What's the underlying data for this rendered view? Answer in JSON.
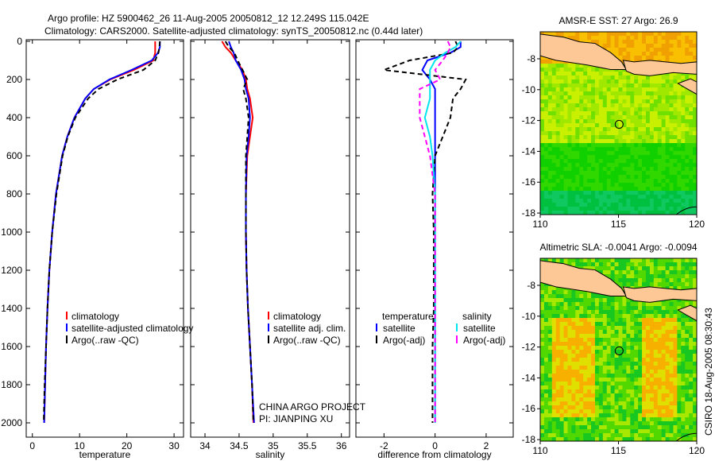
{
  "title_line1": "Argo profile: HZ 5900462_26 11-Aug-2005 20050812_12 12.249S 115.042E",
  "title_line2": "Climatology: CARS2000. Satellite-adjusted climatology: synTS_20050812.nc (0.44d later)",
  "footer_stamp": "CSIRO 18-Aug-2005 08:30:43",
  "colors": {
    "climatology": "#ff0000",
    "satellite": "#0000ff",
    "argo": "#000000",
    "cyan": "#00e5ee",
    "magenta": "#ff00ff",
    "land": "#fdc896"
  },
  "chart_data": [
    {
      "type": "line",
      "xlabel": "temperature",
      "ylabel": "",
      "xlim": [
        -1.3,
        32
      ],
      "ylim": [
        0,
        2075
      ],
      "xticks": [
        "0",
        "10",
        "20",
        "30"
      ],
      "xtick_values": [
        0,
        10,
        20,
        30
      ],
      "yticks": [
        "0",
        "200",
        "400",
        "600",
        "800",
        "1000",
        "1200",
        "1400",
        "1600",
        "1800",
        "2000"
      ],
      "depth": [
        0,
        30,
        60,
        100,
        150,
        200,
        250,
        300,
        400,
        500,
        600,
        800,
        1000,
        1200,
        1400,
        1600,
        1800,
        2000
      ],
      "legend": [
        "climatology",
        "satellite-adjusted climatology",
        "Argo(..raw -QC)"
      ],
      "series": [
        {
          "name": "climatology",
          "style": "climatology",
          "values": [
            26,
            26,
            26,
            25.6,
            21.5,
            16.5,
            13,
            11.2,
            8.9,
            7.4,
            6.3,
            5,
            4.2,
            3.6,
            3.2,
            2.9,
            2.7,
            2.5
          ]
        },
        {
          "name": "satellite-adjusted climatology",
          "style": "satellite",
          "values": [
            27,
            27,
            26.6,
            25.3,
            21,
            16.3,
            13,
            11.2,
            8.9,
            7.4,
            6.3,
            5,
            4.2,
            3.6,
            3.2,
            2.9,
            2.7,
            2.5
          ]
        },
        {
          "name": "Argo(..raw -QC)",
          "style": "argo",
          "values": [
            27,
            26.9,
            26.7,
            26,
            23.5,
            18,
            14,
            11.8,
            9.1,
            7.5,
            6.4,
            5.1,
            4.2,
            3.6,
            3.2,
            2.9,
            2.6,
            2.4
          ]
        }
      ]
    },
    {
      "type": "line",
      "xlabel": "salinity",
      "xlim": [
        33.79,
        36.12
      ],
      "ylim": [
        0,
        2075
      ],
      "xticks": [
        "34",
        "34.5",
        "35",
        "35.5",
        "36"
      ],
      "xtick_values": [
        34,
        34.5,
        35,
        35.5,
        36
      ],
      "depth": [
        0,
        30,
        60,
        100,
        150,
        200,
        250,
        300,
        400,
        500,
        600,
        800,
        1000,
        1200,
        1400,
        1600,
        1800,
        2000
      ],
      "legend": [
        "climatology",
        "satellite adj. clim.",
        "Argo(..raw -QC)"
      ],
      "annotation": [
        "CHINA ARGO PROJECT",
        "PI: JIANPING XU"
      ],
      "series": [
        {
          "name": "climatology",
          "style": "climatology",
          "values": [
            34.25,
            34.3,
            34.38,
            34.45,
            34.55,
            34.6,
            34.62,
            34.66,
            34.7,
            34.66,
            34.62,
            34.6,
            34.6,
            34.61,
            34.63,
            34.66,
            34.69,
            34.71
          ]
        },
        {
          "name": "satellite adj. clim.",
          "style": "satellite",
          "values": [
            34.35,
            34.38,
            34.42,
            34.45,
            34.53,
            34.58,
            34.6,
            34.64,
            34.66,
            34.64,
            34.61,
            34.6,
            34.6,
            34.61,
            34.63,
            34.66,
            34.69,
            34.72
          ]
        },
        {
          "name": "Argo(..raw -QC)",
          "style": "argo",
          "values": [
            34.3,
            34.35,
            34.43,
            34.48,
            34.55,
            34.62,
            34.56,
            34.6,
            34.64,
            34.62,
            34.6,
            34.6,
            34.6,
            34.61,
            34.63,
            34.66,
            34.69,
            34.71
          ]
        }
      ]
    },
    {
      "type": "line",
      "xlabel": "difference from climatology",
      "xlim": [
        -3.1,
        3.06
      ],
      "ylim": [
        0,
        2075
      ],
      "xticks": [
        "-2",
        "0",
        "2"
      ],
      "xtick_values": [
        -2,
        0,
        2
      ],
      "depth": [
        0,
        30,
        60,
        100,
        150,
        200,
        250,
        300,
        400,
        500,
        600,
        800,
        1000,
        1200,
        1400,
        1600,
        1800,
        2000
      ],
      "legend_header": [
        "temperature",
        "salinity"
      ],
      "legend": [
        "satellite",
        "Argo(-adj)",
        "satellite",
        "Argo(-adj)"
      ],
      "series": [
        {
          "name": "temperature satellite",
          "style": "satellite",
          "values": [
            1,
            1,
            0.6,
            -0.3,
            -0.5,
            -0.2,
            0,
            0,
            0,
            0,
            0,
            0,
            0,
            0,
            0,
            0,
            0,
            0
          ]
        },
        {
          "name": "temperature Argo(-adj)",
          "style": "argo",
          "values": [
            0.8,
            0.9,
            0.7,
            -1,
            -2,
            1.2,
            1,
            0.7,
            0.6,
            0.3,
            0,
            -0.1,
            -0.05,
            -0.05,
            -0.05,
            -0.1,
            -0.1,
            -0.1
          ]
        },
        {
          "name": "salinity satellite",
          "style": "cyan",
          "values": [
            1,
            0.8,
            0.4,
            0,
            -0.2,
            -0.2,
            -0.2,
            -0.2,
            -0.4,
            -0.2,
            -0.1,
            0,
            0,
            0,
            0,
            0,
            0,
            0
          ]
        },
        {
          "name": "salinity Argo(-adj)",
          "style": "magenta",
          "values": [
            0.5,
            0.6,
            0.5,
            0.3,
            0,
            0.2,
            -0.6,
            -0.6,
            -0.6,
            -0.4,
            -0.2,
            0,
            0,
            0,
            0,
            0,
            0,
            0
          ]
        }
      ]
    },
    {
      "type": "heatmap",
      "title": "AMSR-E SST: 27 Argo: 26.9",
      "xticks": [
        "110",
        "115",
        "120"
      ],
      "yticks": [
        "-8",
        "-10",
        "-12",
        "-14",
        "-16",
        "-18"
      ],
      "xlim": [
        110,
        120
      ],
      "ylim": [
        -18.1,
        -6.25
      ],
      "marker": {
        "lon": 115.042,
        "lat": -12.249
      }
    },
    {
      "type": "heatmap",
      "title": "Altimetric SLA: -0.0041 Argo: -0.0094",
      "xticks": [
        "110",
        "115",
        "120"
      ],
      "yticks": [
        "-8",
        "-10",
        "-12",
        "-14",
        "-16",
        "-18"
      ],
      "xlim": [
        110,
        120
      ],
      "ylim": [
        -18.1,
        -6.25
      ],
      "marker": {
        "lon": 115.042,
        "lat": -12.249
      }
    }
  ]
}
